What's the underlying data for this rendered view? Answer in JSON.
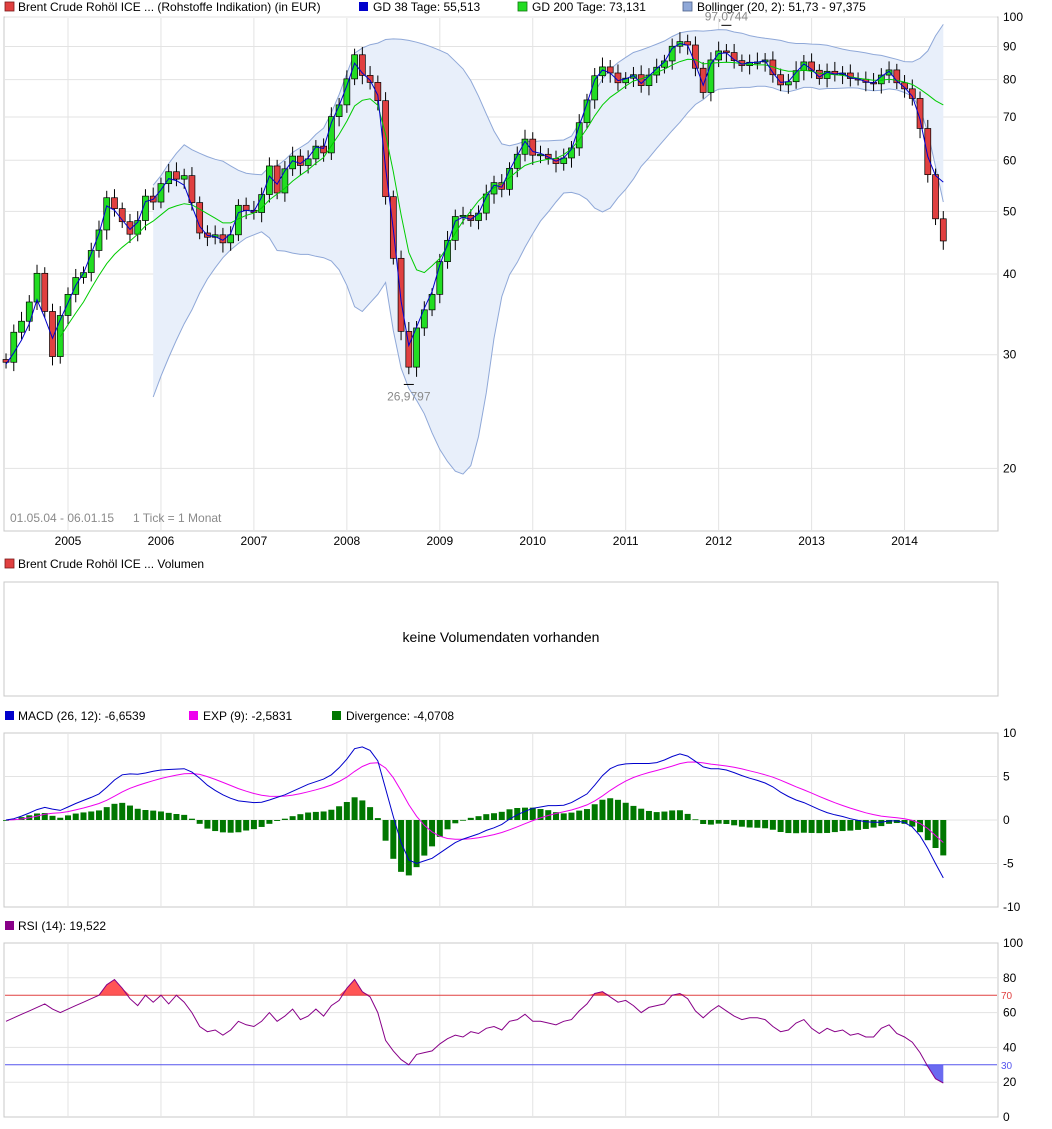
{
  "chart_data": [
    {
      "type": "candlestick",
      "interval": "monthly",
      "legend": [
        {
          "label": "Brent Crude Rohöl ICE ... (Rohstoffe Indikation) (in EUR)",
          "color": "#e04040"
        },
        {
          "label": "GD 38 Tage: 55,513",
          "color": "#0000cc"
        },
        {
          "label": "GD 200 Tage: 73,131",
          "color": "#00cc00"
        },
        {
          "label": "Bollinger (20, 2): 51,73 - 97,375",
          "color": "#8fa8d8"
        }
      ],
      "date_range": "01.05.04 - 06.01.15",
      "tick_note": "1 Tick = 1 Monat",
      "x_labels": [
        "2005",
        "2006",
        "2007",
        "2008",
        "2009",
        "2010",
        "2011",
        "2012",
        "2013",
        "2014"
      ],
      "y_ticks": [
        "20",
        "30",
        "40",
        "50",
        "60",
        "70",
        "80",
        "90",
        "100"
      ],
      "y_scale": "log",
      "ylim": [
        16,
        100
      ],
      "annotations": [
        "97,0744",
        "26,9797"
      ],
      "colors": {
        "up": "#22dd22",
        "down": "#e04040",
        "wick": "#000000",
        "bollinger_fill": "#e8effa",
        "bollinger_line": "#8fa8d8",
        "gd38": "#0000cc",
        "gd200": "#00cc00"
      },
      "close": [
        29.2,
        32.5,
        33.8,
        36.2,
        40.1,
        35.0,
        29.8,
        34.5,
        37.2,
        39.5,
        40.2,
        43.5,
        46.8,
        52.5,
        50.5,
        48.2,
        46.1,
        48.4,
        52.8,
        51.7,
        55.2,
        57.6,
        56.1,
        56.8,
        51.6,
        46.3,
        45.6,
        46.0,
        44.7,
        46.0,
        51.1,
        50.2,
        49.8,
        53.1,
        58.8,
        53.4,
        58.2,
        60.9,
        58.9,
        60.3,
        63.1,
        61.6,
        70.1,
        73.1,
        80.2,
        87.4,
        81.2,
        79.2,
        74.2,
        52.7,
        42.3,
        32.6,
        28.7,
        33.0,
        35.2,
        37.2,
        41.8,
        45.1,
        49.1,
        49.3,
        48.4,
        49.7,
        53.2,
        55.4,
        54.1,
        58.3,
        61.3,
        64.7,
        61.1,
        61.3,
        60.4,
        59.3,
        60.5,
        62.7,
        68.6,
        74.4,
        81.1,
        83.7,
        81.9,
        79.1,
        80.4,
        81.4,
        78.3,
        81.3,
        83.6,
        85.5,
        90.1,
        91.6,
        90.5,
        83.3,
        76.4,
        85.8,
        88.6,
        88.1,
        85.6,
        84.1,
        85.1,
        85.2,
        85.8,
        81.4,
        78.5,
        79.4,
        82.6,
        85.2,
        82.7,
        80.3,
        82.4,
        81.5,
        81.9,
        80.3,
        80.1,
        79.2,
        78.8,
        81.3,
        82.8,
        79.1,
        77.4,
        74.8,
        67.2,
        57.0,
        48.7,
        45.0
      ],
      "gd38": [
        29.0,
        30.2,
        31.6,
        33.5,
        36.5,
        34.2,
        31.8,
        34.0,
        36.1,
        38.4,
        40.1,
        43.0,
        46.2,
        51.0,
        50.2,
        48.5,
        46.9,
        48.1,
        51.8,
        52.2,
        54.0,
        56.2,
        55.8,
        54.9,
        51.0,
        47.4,
        45.9,
        45.7,
        45.1,
        46.2,
        49.8,
        50.2,
        50.0,
        52.6,
        56.7,
        55.1,
        57.8,
        59.9,
        59.3,
        60.5,
        62.9,
        62.6,
        68.6,
        72.9,
        78.3,
        84.8,
        81.9,
        79.8,
        75.7,
        58.4,
        46.9,
        36.3,
        31.0,
        33.1,
        35.4,
        37.6,
        41.3,
        44.5,
        48.3,
        49.0,
        48.6,
        49.6,
        52.7,
        54.9,
        54.5,
        57.9,
        61.0,
        64.2,
        61.9,
        61.5,
        60.7,
        59.8,
        60.5,
        62.4,
        67.8,
        73.5,
        79.9,
        82.8,
        81.9,
        79.7,
        80.2,
        81.2,
        78.9,
        81.0,
        83.2,
        85.2,
        89.4,
        91.0,
        90.4,
        84.5,
        78.4,
        84.6,
        87.8,
        88.0,
        85.9,
        84.5,
        85.0,
        85.1,
        85.6,
        82.0,
        79.2,
        79.4,
        82.1,
        84.6,
        83.0,
        80.7,
        82.1,
        81.6,
        81.8,
        80.5,
        80.2,
        79.4,
        79.0,
        80.9,
        82.4,
        79.6,
        77.8,
        75.4,
        69.5,
        60.8,
        56.8,
        55.5
      ],
      "gd200": [
        null,
        null,
        null,
        null,
        null,
        null,
        null,
        32.0,
        33.4,
        34.8,
        36.2,
        38.0,
        39.8,
        41.5,
        42.9,
        44.0,
        45.0,
        46.1,
        47.5,
        48.3,
        49.4,
        50.5,
        51.0,
        51.4,
        51.2,
        50.4,
        49.6,
        48.8,
        48.0,
        48.0,
        48.7,
        49.3,
        49.7,
        50.6,
        52.1,
        53.2,
        54.3,
        55.7,
        56.9,
        58.0,
        59.4,
        60.6,
        63.2,
        65.8,
        69.0,
        72.8,
        74.3,
        74.7,
        73.0,
        65.8,
        57.6,
        49.4,
        43.2,
        40.6,
        40.2,
        41.2,
        42.3,
        44.1,
        46.3,
        48.3,
        50.1,
        51.9,
        53.3,
        54.4,
        55.2,
        56.4,
        57.7,
        58.9,
        59.5,
        59.9,
        60.2,
        60.4,
        61.2,
        62.5,
        64.6,
        67.2,
        70.3,
        73.1,
        75.1,
        76.6,
        78.2,
        79.6,
        80.2,
        81.0,
        82.1,
        83.0,
        84.3,
        85.3,
        86.0,
        85.9,
        84.6,
        84.8,
        85.0,
        85.1,
        85.0,
        84.7,
        84.5,
        84.3,
        84.3,
        83.7,
        82.9,
        82.4,
        82.4,
        82.7,
        82.4,
        81.8,
        81.6,
        81.4,
        81.2,
        80.8,
        80.4,
        80.1,
        79.8,
        79.8,
        80.1,
        79.8,
        79.3,
        78.6,
        77.3,
        75.8,
        74.2,
        73.1
      ],
      "bollinger_upper": [
        null,
        null,
        null,
        null,
        null,
        null,
        null,
        null,
        null,
        null,
        null,
        null,
        null,
        null,
        null,
        null,
        null,
        null,
        null,
        54.9,
        56.8,
        59.3,
        61.5,
        63.4,
        62.3,
        61.5,
        60.8,
        60.2,
        59.8,
        58.8,
        57.9,
        57.3,
        57.1,
        57.0,
        58.6,
        58.8,
        60.1,
        61.7,
        62.8,
        63.9,
        65.8,
        67.3,
        71.1,
        75.8,
        81.8,
        87.9,
        89.5,
        90.6,
        91.1,
        92.3,
        92.5,
        92.4,
        92.0,
        91.4,
        90.7,
        89.8,
        88.8,
        87.7,
        85.4,
        83.1,
        79.7,
        75.4,
        70.8,
        66.6,
        63.6,
        63.2,
        63.6,
        64.2,
        64.1,
        64.3,
        64.3,
        64.4,
        64.5,
        65.4,
        68.5,
        71.9,
        76.5,
        80.2,
        83.0,
        85.0,
        86.6,
        88.1,
        88.9,
        89.8,
        90.8,
        91.8,
        93.3,
        94.5,
        95.0,
        95.2,
        95.1,
        95.3,
        95.6,
        95.5,
        94.8,
        94.4,
        93.6,
        93.1,
        92.7,
        92.4,
        92.0,
        91.3,
        91.0,
        91.0,
        90.8,
        90.7,
        90.4,
        89.8,
        89.2,
        88.7,
        88.4,
        88.0,
        87.5,
        87.2,
        86.6,
        86.0,
        85.3,
        85.2,
        86.3,
        88.6,
        93.5,
        97.4
      ],
      "bollinger_lower": [
        null,
        null,
        null,
        null,
        null,
        null,
        null,
        null,
        null,
        null,
        null,
        null,
        null,
        null,
        null,
        null,
        null,
        null,
        null,
        25.8,
        27.8,
        29.7,
        31.6,
        33.5,
        35.2,
        37.4,
        39.3,
        40.9,
        42.4,
        43.6,
        44.6,
        45.5,
        46.0,
        46.5,
        45.5,
        43.5,
        43.4,
        43.1,
        42.9,
        42.9,
        42.6,
        42.4,
        41.9,
        40.6,
        38.4,
        35.6,
        35.0,
        36.1,
        37.2,
        38.8,
        32.7,
        28.6,
        26.6,
        25.5,
        24.3,
        22.7,
        21.4,
        20.5,
        19.8,
        19.6,
        20.2,
        22.4,
        26.2,
        31.8,
        36.9,
        39.9,
        41.7,
        44.0,
        46.2,
        48.3,
        49.9,
        51.7,
        53.4,
        53.5,
        53.1,
        52.2,
        50.6,
        49.9,
        50.6,
        52.5,
        54.1,
        56.1,
        58.7,
        60.5,
        62.6,
        64.6,
        66.7,
        68.7,
        71.1,
        73.2,
        74.5,
        76.3,
        77.3,
        77.5,
        77.6,
        77.8,
        77.8,
        78.1,
        78.1,
        77.7,
        76.9,
        76.6,
        77.1,
        77.8,
        77.8,
        77.3,
        77.5,
        77.5,
        77.6,
        77.7,
        77.6,
        77.1,
        76.9,
        77.0,
        77.4,
        77.1,
        76.4,
        75.4,
        72.2,
        66.3,
        58.7,
        51.7
      ],
      "extremes": {
        "high": {
          "index": 93,
          "value": 97.0744
        },
        "low": {
          "index": 52,
          "value": 26.9797
        }
      }
    },
    {
      "type": "volume",
      "legend": [
        {
          "label": "Brent Crude Rohöl ICE ... Volumen",
          "color": "#e04040"
        }
      ],
      "message": "keine Volumendaten vorhanden"
    },
    {
      "type": "macd",
      "legend": [
        {
          "label": "MACD (26, 12): -6,6539",
          "color": "#0000cc"
        },
        {
          "label": "EXP (9): -2,5831",
          "color": "#ee00ee"
        },
        {
          "label": "Divergence: -4,0708",
          "color": "#007700"
        }
      ],
      "y_ticks": [
        "-10",
        "-5",
        "0",
        "5",
        "10"
      ],
      "ylim": [
        -10,
        10
      ],
      "macd": [
        0.0,
        0.15,
        0.45,
        0.8,
        1.2,
        1.45,
        1.25,
        1.1,
        1.5,
        1.9,
        2.25,
        2.6,
        3.0,
        3.75,
        4.6,
        5.2,
        5.3,
        5.25,
        5.4,
        5.6,
        5.75,
        5.8,
        5.85,
        5.9,
        5.5,
        4.8,
        4.0,
        3.4,
        2.9,
        2.5,
        2.2,
        2.1,
        2.0,
        2.05,
        2.3,
        2.6,
        2.9,
        3.3,
        3.7,
        4.1,
        4.4,
        4.7,
        5.2,
        6.0,
        7.0,
        8.2,
        8.4,
        8.0,
        6.8,
        3.6,
        0.4,
        -2.6,
        -4.6,
        -5.0,
        -4.7,
        -4.4,
        -3.8,
        -3.2,
        -2.6,
        -2.2,
        -1.9,
        -1.6,
        -1.2,
        -0.9,
        -0.5,
        0.1,
        0.6,
        1.0,
        1.35,
        1.5,
        1.65,
        1.65,
        1.7,
        2.0,
        2.5,
        3.0,
        4.0,
        5.1,
        5.9,
        6.3,
        6.45,
        6.5,
        6.5,
        6.5,
        6.6,
        6.9,
        7.3,
        7.6,
        7.35,
        6.75,
        6.1,
        5.9,
        5.9,
        5.75,
        5.45,
        5.1,
        4.8,
        4.55,
        4.25,
        3.8,
        3.2,
        2.7,
        2.3,
        2.0,
        1.6,
        1.2,
        0.85,
        0.6,
        0.4,
        0.15,
        -0.05,
        -0.2,
        -0.25,
        -0.25,
        -0.1,
        -0.1,
        -0.3,
        -0.8,
        -1.8,
        -3.3,
        -5.0,
        -6.6539
      ],
      "exp": [
        0.0,
        0.03,
        0.12,
        0.26,
        0.45,
        0.65,
        0.77,
        0.84,
        0.97,
        1.16,
        1.38,
        1.62,
        1.9,
        2.27,
        2.74,
        3.23,
        3.64,
        3.96,
        4.25,
        4.52,
        4.77,
        4.98,
        5.16,
        5.31,
        5.35,
        5.24,
        4.99,
        4.67,
        4.32,
        3.96,
        3.61,
        3.31,
        3.05,
        2.85,
        2.74,
        2.71,
        2.75,
        2.86,
        3.03,
        3.24,
        3.47,
        3.72,
        4.02,
        4.42,
        4.93,
        5.59,
        6.15,
        6.52,
        6.58,
        5.98,
        4.86,
        3.36,
        1.77,
        0.42,
        -0.61,
        -1.37,
        -1.86,
        -2.13,
        -2.22,
        -2.21,
        -2.15,
        -2.04,
        -1.87,
        -1.68,
        -1.44,
        -1.13,
        -0.78,
        -0.42,
        -0.07,
        0.24,
        0.52,
        0.75,
        0.94,
        1.15,
        1.42,
        1.74,
        2.19,
        2.77,
        3.4,
        3.98,
        4.47,
        4.88,
        5.2,
        5.46,
        5.69,
        5.93,
        6.2,
        6.48,
        6.65,
        6.67,
        6.56,
        6.43,
        6.32,
        6.21,
        6.06,
        5.87,
        5.66,
        5.44,
        5.2,
        4.92,
        4.58,
        4.2,
        3.82,
        3.46,
        3.09,
        2.71,
        2.34,
        1.99,
        1.67,
        1.37,
        1.09,
        0.83,
        0.62,
        0.45,
        0.34,
        0.25,
        0.14,
        -0.05,
        -0.4,
        -0.98,
        -1.78,
        -2.5831
      ]
    },
    {
      "type": "rsi",
      "legend": [
        {
          "label": "RSI (14): 19,522",
          "color": "#880088"
        }
      ],
      "y_ticks": [
        "0",
        "20",
        "40",
        "60",
        "80",
        "100"
      ],
      "ylim": [
        0,
        100
      ],
      "reference_lines": [
        {
          "value": "70",
          "color": "#e04040"
        },
        {
          "value": "30",
          "color": "#5555ee"
        }
      ],
      "values": [
        55,
        57,
        59,
        61,
        63,
        65,
        62,
        60,
        62,
        64,
        66,
        68,
        70,
        76,
        79,
        74,
        68,
        64,
        70,
        66,
        70,
        65,
        70,
        66,
        60,
        52,
        49,
        50,
        47,
        50,
        55,
        53,
        52,
        55,
        60,
        55,
        58,
        62,
        56,
        58,
        62,
        58,
        64,
        67,
        74,
        79,
        72,
        69,
        60,
        44,
        38,
        33,
        30,
        36,
        37,
        38,
        42,
        45,
        47,
        46,
        49,
        48,
        51,
        52,
        50,
        55,
        56,
        59,
        55,
        55,
        54,
        53,
        55,
        56,
        61,
        65,
        71,
        72,
        69,
        66,
        67,
        64,
        60,
        63,
        64,
        65,
        70,
        71,
        68,
        61,
        57,
        61,
        64,
        61,
        58,
        56,
        57,
        57,
        56,
        52,
        49,
        50,
        54,
        56,
        51,
        48,
        51,
        49,
        50,
        47,
        48,
        46,
        46,
        51,
        53,
        48,
        46,
        43,
        37,
        29,
        22,
        19.522
      ]
    }
  ]
}
